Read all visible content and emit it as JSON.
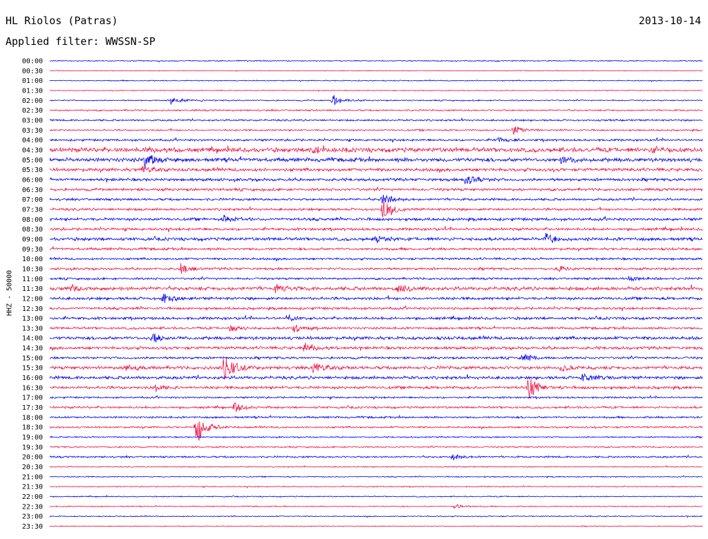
{
  "header": {
    "station": "HL Riolos (Patras)",
    "date": "2013-10-14",
    "filter": "Applied filter: WWSSN-SP"
  },
  "chart_data": {
    "type": "line",
    "title": "HL Riolos (Patras)",
    "ylabel": "HHZ - 50000",
    "row_interval_minutes": 30,
    "times": [
      "00:00",
      "00:30",
      "01:00",
      "01:30",
      "02:00",
      "02:30",
      "03:00",
      "03:30",
      "04:00",
      "04:30",
      "05:00",
      "05:30",
      "06:00",
      "06:30",
      "07:00",
      "07:30",
      "08:00",
      "08:30",
      "09:00",
      "09:30",
      "10:00",
      "10:30",
      "11:00",
      "11:30",
      "12:00",
      "12:30",
      "13:00",
      "13:30",
      "14:00",
      "14:30",
      "15:00",
      "15:30",
      "16:00",
      "16:30",
      "17:00",
      "17:30",
      "18:00",
      "18:30",
      "19:00",
      "19:30",
      "20:00",
      "20:30",
      "21:00",
      "21:30",
      "22:00",
      "22:30",
      "23:00",
      "23:30"
    ],
    "colors": [
      "#0000ee",
      "#ee1144"
    ],
    "noise": [
      0.6,
      0.4,
      0.6,
      0.5,
      0.7,
      0.9,
      1.0,
      0.9,
      1.2,
      2.5,
      2.2,
      1.8,
      1.6,
      1.5,
      1.3,
      1.4,
      1.6,
      1.5,
      1.8,
      1.4,
      1.2,
      1.3,
      1.2,
      2.0,
      1.6,
      1.4,
      1.5,
      1.3,
      1.8,
      1.6,
      1.3,
      1.8,
      1.7,
      1.6,
      1.0,
      1.2,
      1.1,
      1.0,
      0.8,
      0.8,
      1.0,
      0.6,
      0.6,
      0.6,
      0.6,
      0.6,
      0.6,
      0.5
    ],
    "events": [
      {
        "row": 4,
        "minute": 5.6,
        "amp": 8
      },
      {
        "row": 4,
        "minute": 13.0,
        "amp": 10
      },
      {
        "row": 7,
        "minute": 21.3,
        "amp": 9
      },
      {
        "row": 8,
        "minute": 20.5,
        "amp": 4
      },
      {
        "row": 9,
        "minute": 4.4,
        "amp": 5
      },
      {
        "row": 9,
        "minute": 12.0,
        "amp": 5
      },
      {
        "row": 9,
        "minute": 27.7,
        "amp": 5
      },
      {
        "row": 10,
        "minute": 4.4,
        "amp": 14
      },
      {
        "row": 10,
        "minute": 23.5,
        "amp": 6
      },
      {
        "row": 11,
        "minute": 4.2,
        "amp": 6
      },
      {
        "row": 12,
        "minute": 19.1,
        "amp": 11
      },
      {
        "row": 14,
        "minute": 15.3,
        "amp": 9
      },
      {
        "row": 15,
        "minute": 15.3,
        "amp": 20
      },
      {
        "row": 16,
        "minute": 8.0,
        "amp": 5
      },
      {
        "row": 18,
        "minute": 15.0,
        "amp": 5
      },
      {
        "row": 18,
        "minute": 22.8,
        "amp": 10
      },
      {
        "row": 21,
        "minute": 6.0,
        "amp": 9
      },
      {
        "row": 21,
        "minute": 23.3,
        "amp": 5
      },
      {
        "row": 22,
        "minute": 26.6,
        "amp": 5
      },
      {
        "row": 23,
        "minute": 1.0,
        "amp": 7
      },
      {
        "row": 23,
        "minute": 10.4,
        "amp": 8
      },
      {
        "row": 23,
        "minute": 15.9,
        "amp": 9
      },
      {
        "row": 24,
        "minute": 5.2,
        "amp": 8
      },
      {
        "row": 26,
        "minute": 10.9,
        "amp": 6
      },
      {
        "row": 27,
        "minute": 8.3,
        "amp": 6
      },
      {
        "row": 27,
        "minute": 11.2,
        "amp": 8
      },
      {
        "row": 28,
        "minute": 4.7,
        "amp": 9
      },
      {
        "row": 29,
        "minute": 11.7,
        "amp": 12
      },
      {
        "row": 30,
        "minute": 21.7,
        "amp": 8
      },
      {
        "row": 31,
        "minute": 3.5,
        "amp": 6
      },
      {
        "row": 31,
        "minute": 8.0,
        "amp": 26
      },
      {
        "row": 31,
        "minute": 12.1,
        "amp": 10
      },
      {
        "row": 31,
        "minute": 23.5,
        "amp": 7
      },
      {
        "row": 32,
        "minute": 24.5,
        "amp": 8
      },
      {
        "row": 33,
        "minute": 4.9,
        "amp": 6
      },
      {
        "row": 33,
        "minute": 22.0,
        "amp": 20
      },
      {
        "row": 35,
        "minute": 8.5,
        "amp": 8
      },
      {
        "row": 37,
        "minute": 6.7,
        "amp": 28
      },
      {
        "row": 40,
        "minute": 18.5,
        "amp": 6
      },
      {
        "row": 45,
        "minute": 18.6,
        "amp": 4
      }
    ]
  }
}
